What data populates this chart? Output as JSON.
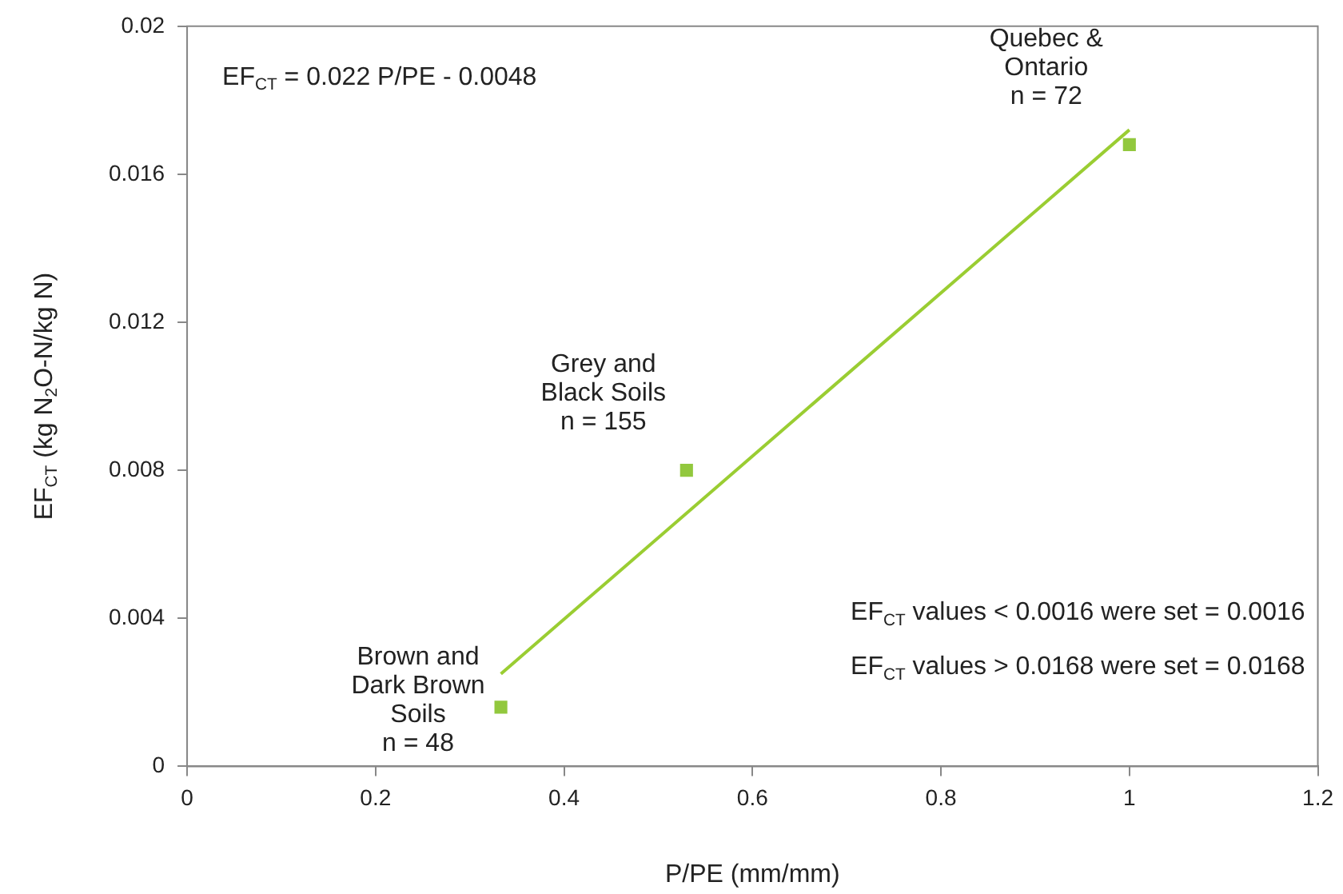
{
  "chart_data": {
    "type": "scatter",
    "xlabel": "P/PE (mm/mm)",
    "ylabel": "EF$_{CT}$ (kg N$_{2}$O-N/kg N)",
    "xlim": [
      0,
      1.2
    ],
    "xticks": [
      0,
      0.2,
      0.4,
      0.6,
      0.8,
      1,
      1.2
    ],
    "ylim": [
      0,
      0.02
    ],
    "yticks": [
      0,
      0.004,
      0.008,
      0.012,
      0.016,
      0.02
    ],
    "grid": false,
    "legend": false,
    "marker": "square",
    "series": [
      {
        "color": "#92c83e",
        "x": [
          0.333,
          0.53,
          1.0
        ],
        "values": [
          0.0016,
          0.008,
          0.0168
        ]
      },
      {
        "type": "line",
        "color": "#9acd32",
        "x": [
          0.333,
          1.0
        ],
        "values": [
          0.0025,
          0.0172
        ],
        "marker": "none"
      }
    ],
    "annotations": [
      "EF$_{CT}$ = 0.022 P/PE - 0.0048",
      "EF$_{CT}$ values < 0.0016 were set = 0.0016",
      "EF$_{CT}$ values > 0.0168 were set = 0.0168",
      {
        "text": "Brown and\nDark Brown\nSoils\nn = 48",
        "x": 0.333,
        "y": 0.0016
      },
      {
        "text": "Grey and\nBlack Soils\nn = 155",
        "x": 0.53,
        "y": 0.008
      },
      {
        "text": "Quebec &\nOntario\nn = 72",
        "x": 1.0,
        "y": 0.0168
      }
    ]
  }
}
